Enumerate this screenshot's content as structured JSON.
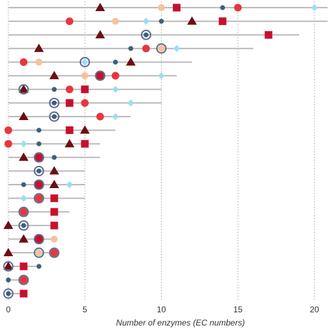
{
  "chart_data": {
    "type": "scatter",
    "title": "",
    "xlabel": "Number of enzymes (EC numbers)",
    "ylabel": "",
    "xlim": [
      0,
      20.5
    ],
    "x_ticks": [
      0,
      5,
      10,
      15,
      20
    ],
    "grid": "dotted vertical lines at x ticks",
    "legend": "none",
    "rows": [
      {
        "line_end": 21,
        "points": [
          {
            "x": 6,
            "s": "triangle"
          },
          {
            "x": 10,
            "s": "circle_peach"
          },
          {
            "x": 11,
            "s": "square"
          },
          {
            "x": 14,
            "s": "circle_small_blue"
          },
          {
            "x": 15,
            "s": "circle_red"
          },
          {
            "x": 20,
            "s": "diamond"
          }
        ]
      },
      {
        "line_end": 21,
        "points": [
          {
            "x": 4,
            "s": "circle_red"
          },
          {
            "x": 7,
            "s": "circle_peach"
          },
          {
            "x": 9,
            "s": "diamond"
          },
          {
            "x": 10,
            "s": "circle_small_blue"
          },
          {
            "x": 12,
            "s": "triangle"
          },
          {
            "x": 14,
            "s": "square"
          }
        ]
      },
      {
        "line_end": 19,
        "points": [
          {
            "x": 6,
            "s": "triangle"
          },
          {
            "x": 9,
            "s": "ringed_blue"
          },
          {
            "x": 17,
            "s": "square"
          }
        ]
      },
      {
        "line_end": 16,
        "points": [
          {
            "x": 2,
            "s": "triangle"
          },
          {
            "x": 8,
            "s": "circle_small_blue"
          },
          {
            "x": 9,
            "s": "circle_red"
          },
          {
            "x": 10,
            "s": "circle_peach_ringed"
          },
          {
            "x": 11,
            "s": "diamond"
          }
        ]
      },
      {
        "line_end": 12,
        "points": [
          {
            "x": 1,
            "s": "circle_red"
          },
          {
            "x": 2,
            "s": "circle_peach"
          },
          {
            "x": 5,
            "s": "diamond_ringed"
          },
          {
            "x": 7,
            "s": "circle_small_blue"
          },
          {
            "x": 8,
            "s": "triangle"
          }
        ]
      },
      {
        "line_end": 11,
        "points": [
          {
            "x": 3,
            "s": "triangle"
          },
          {
            "x": 5,
            "s": "circle_peach"
          },
          {
            "x": 6,
            "s": "square_ringed"
          },
          {
            "x": 7,
            "s": "circle_red"
          },
          {
            "x": 10,
            "s": "diamond"
          }
        ]
      },
      {
        "line_end": 10,
        "points": [
          {
            "x": 1,
            "s": "triangle_ringed"
          },
          {
            "x": 3,
            "s": "circle_small_blue"
          },
          {
            "x": 4,
            "s": "circle_red"
          },
          {
            "x": 5,
            "s": "square"
          },
          {
            "x": 7,
            "s": "diamond"
          }
        ]
      },
      {
        "line_end": 10,
        "points": [
          {
            "x": 3,
            "s": "circle_small_blue_ringed"
          },
          {
            "x": 4,
            "s": "square"
          },
          {
            "x": 5,
            "s": "circle_red"
          },
          {
            "x": 8,
            "s": "diamond"
          }
        ]
      },
      {
        "line_end": 8,
        "points": [
          {
            "x": 1,
            "s": "triangle"
          },
          {
            "x": 3,
            "s": "circle_small_blue_ringed"
          },
          {
            "x": 6,
            "s": "circle_red"
          },
          {
            "x": 7,
            "s": "diamond"
          }
        ]
      },
      {
        "line_end": 7,
        "points": [
          {
            "x": 0,
            "s": "circle_red"
          },
          {
            "x": 2,
            "s": "circle_small_blue"
          },
          {
            "x": 4,
            "s": "square"
          },
          {
            "x": 5,
            "s": "triangle"
          }
        ]
      },
      {
        "line_end": 6,
        "points": [
          {
            "x": 0,
            "s": "circle_red"
          },
          {
            "x": 1,
            "s": "diamond"
          },
          {
            "x": 2,
            "s": "circle_small_blue"
          },
          {
            "x": 4,
            "s": "triangle"
          },
          {
            "x": 5,
            "s": "square"
          }
        ]
      },
      {
        "line_end": 6,
        "points": [
          {
            "x": 1,
            "s": "triangle"
          },
          {
            "x": 2,
            "s": "square_ringed"
          },
          {
            "x": 3,
            "s": "circle_small_blue"
          }
        ]
      },
      {
        "line_end": 5,
        "points": [
          {
            "x": 2,
            "s": "circle_small_blue_ringed"
          },
          {
            "x": 3,
            "s": "triangle"
          }
        ]
      },
      {
        "line_end": 5,
        "points": [
          {
            "x": 1,
            "s": "circle_small_blue"
          },
          {
            "x": 2,
            "s": "square_ringed"
          },
          {
            "x": 3,
            "s": "triangle"
          },
          {
            "x": 4,
            "s": "diamond"
          }
        ]
      },
      {
        "line_end": 5,
        "points": [
          {
            "x": 1,
            "s": "diamond"
          },
          {
            "x": 2,
            "s": "circle_red_ringed"
          },
          {
            "x": 3,
            "s": "square"
          }
        ]
      },
      {
        "line_end": 4,
        "points": [
          {
            "x": 1,
            "s": "circle_red_ringed"
          },
          {
            "x": 3,
            "s": "square"
          }
        ]
      },
      {
        "line_end": 3,
        "points": [
          {
            "x": 0,
            "s": "triangle"
          },
          {
            "x": 1,
            "s": "circle_small_blue_ringed"
          },
          {
            "x": 3,
            "s": "square"
          }
        ]
      },
      {
        "line_end": 3,
        "points": [
          {
            "x": 1,
            "s": "triangle"
          },
          {
            "x": 2,
            "s": "square_ringed"
          },
          {
            "x": 3,
            "s": "circle_peach"
          }
        ]
      },
      {
        "line_end": 3,
        "points": [
          {
            "x": 0,
            "s": "triangle"
          },
          {
            "x": 2,
            "s": "circle_peach_ringed"
          },
          {
            "x": 3,
            "s": "circle_red_ringed"
          }
        ]
      },
      {
        "line_end": 2,
        "points": [
          {
            "x": 0,
            "s": "triangle_ringed"
          },
          {
            "x": 1,
            "s": "square"
          },
          {
            "x": 2,
            "s": "circle_small_blue"
          }
        ]
      },
      {
        "line_end": 1,
        "points": [
          {
            "x": 0,
            "s": "circle_small_blue"
          },
          {
            "x": 1,
            "s": "circle_red_ringed"
          }
        ]
      },
      {
        "line_end": 1,
        "points": [
          {
            "x": 0,
            "s": "circle_small_blue_ringed"
          },
          {
            "x": 1,
            "s": "square"
          }
        ]
      }
    ],
    "colors": {
      "triangle": "#6b0f12",
      "square": "#c8102e",
      "circle_red": "#e8363f",
      "circle_peach": "#f7c29b",
      "circle_blue": "#3e5f7d",
      "diamond": "#9fdcf2",
      "ring": "#5b6f90",
      "line": "#bbbbbb",
      "grid": "#aaaaaa"
    }
  }
}
